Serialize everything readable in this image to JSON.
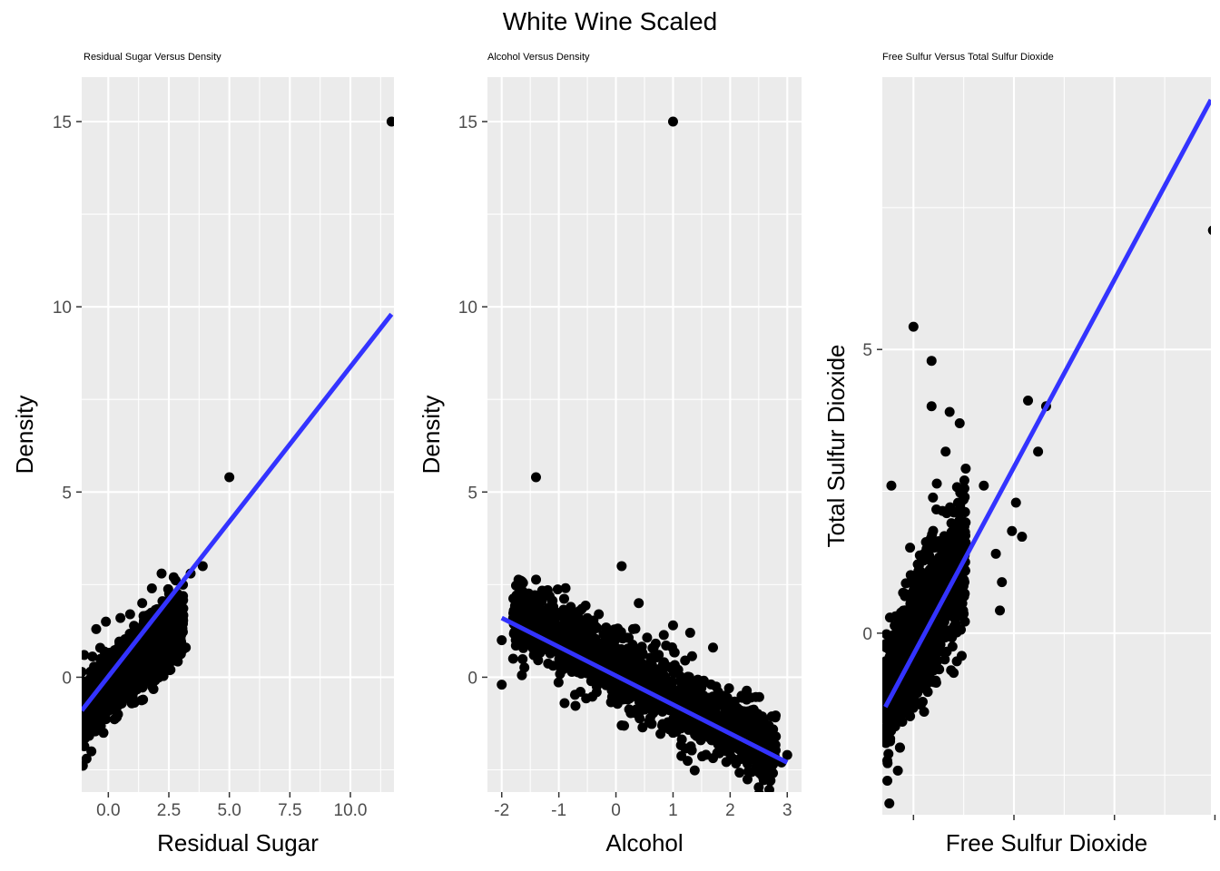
{
  "title": "White Wine Scaled",
  "chart_data": [
    {
      "type": "scatter",
      "title": "Residual Sugar Versus Density",
      "xlabel": "Residual Sugar",
      "ylabel": "Density",
      "xlim": [
        -1.1,
        11.8
      ],
      "ylim": [
        -3.1,
        16.2
      ],
      "x_ticks": [
        0.0,
        2.5,
        5.0,
        7.5,
        10.0
      ],
      "x_tick_labels": [
        "0.0",
        "2.5",
        "5.0",
        "7.5",
        "10.0"
      ],
      "y_ticks": [
        0,
        5,
        10,
        15
      ],
      "y_tick_labels": [
        "0",
        "5",
        "10",
        "15"
      ],
      "grid": true,
      "points": [
        [
          11.7,
          15.0
        ],
        [
          5.0,
          5.4
        ],
        [
          3.9,
          3.0
        ],
        [
          3.4,
          2.8
        ],
        [
          3.2,
          0.8
        ],
        [
          2.7,
          2.7
        ],
        [
          2.2,
          2.8
        ],
        [
          1.8,
          2.4
        ],
        [
          1.4,
          2.0
        ],
        [
          0.9,
          1.7
        ],
        [
          0.5,
          1.6
        ],
        [
          -0.1,
          1.5
        ],
        [
          -0.5,
          1.3
        ],
        [
          -1.0,
          0.6
        ],
        [
          -1.0,
          -0.6
        ],
        [
          -0.9,
          -2.2
        ],
        [
          -0.7,
          -2.0
        ],
        [
          -0.2,
          -1.5
        ],
        [
          0.4,
          -1.0
        ],
        [
          1.0,
          -0.5
        ],
        [
          1.5,
          0.0
        ],
        [
          2.0,
          0.5
        ],
        [
          2.5,
          1.0
        ],
        [
          3.0,
          2.0
        ],
        [
          2.9,
          0.9
        ],
        [
          -0.5,
          -0.3
        ],
        [
          0.0,
          0.4
        ],
        [
          0.6,
          0.9
        ],
        [
          1.2,
          1.3
        ],
        [
          1.7,
          1.7
        ]
      ],
      "cloud": {
        "x_range": [
          -1.1,
          3.1
        ],
        "y_center_intercept": -0.3,
        "y_center_slope": 0.62,
        "y_spread": 0.75
      },
      "fit_line": {
        "x": [
          -1.1,
          11.7
        ],
        "y": [
          -0.9,
          9.8
        ]
      }
    },
    {
      "type": "scatter",
      "title": "Alcohol Versus Density",
      "xlabel": "Alcohol",
      "ylabel": "Density",
      "xlim": [
        -2.25,
        3.25
      ],
      "ylim": [
        -3.1,
        16.2
      ],
      "x_ticks": [
        -2,
        -1,
        0,
        1,
        2,
        3
      ],
      "x_tick_labels": [
        "-2",
        "-1",
        "0",
        "1",
        "2",
        "3"
      ],
      "y_ticks": [
        0,
        5,
        10,
        15
      ],
      "y_tick_labels": [
        "0",
        "5",
        "10",
        "15"
      ],
      "grid": true,
      "points": [
        [
          1.0,
          15.0
        ],
        [
          -1.4,
          5.4
        ],
        [
          0.1,
          3.0
        ],
        [
          0.4,
          2.0
        ],
        [
          -2.0,
          1.0
        ],
        [
          -2.0,
          -0.2
        ],
        [
          -1.8,
          0.5
        ],
        [
          -1.7,
          1.4
        ],
        [
          -1.7,
          2.6
        ],
        [
          1.0,
          1.4
        ],
        [
          1.3,
          1.2
        ],
        [
          1.7,
          0.8
        ],
        [
          1.9,
          -0.5
        ],
        [
          2.2,
          -0.5
        ],
        [
          2.4,
          -1.3
        ],
        [
          2.5,
          -1.6
        ],
        [
          2.8,
          -1.6
        ],
        [
          2.9,
          -2.3
        ],
        [
          3.0,
          -2.1
        ],
        [
          2.6,
          -2.2
        ],
        [
          2.0,
          -1.8
        ],
        [
          1.0,
          -1.5
        ],
        [
          0.1,
          -1.3
        ],
        [
          -0.9,
          -0.7
        ],
        [
          -0.3,
          1.7
        ],
        [
          0.3,
          1.3
        ]
      ],
      "cloud": {
        "x_range": [
          -1.8,
          2.8
        ],
        "y_center_intercept": 0.3,
        "y_center_slope": -0.85,
        "y_spread": 0.9
      },
      "fit_line": {
        "x": [
          -2.0,
          3.0
        ],
        "y": [
          1.6,
          -2.3
        ]
      }
    },
    {
      "type": "scatter",
      "title": "Free Sulfur Versus Total Sulfur Dioxide",
      "xlabel": "Free Sulfur Dioxide",
      "ylabel": "Total Sulfur Dioxide",
      "xlim": [
        -1.55,
        14.8
      ],
      "ylim": [
        -3.2,
        9.8
      ],
      "x_ticks": [
        0,
        5,
        10,
        15
      ],
      "x_tick_labels": [
        "",
        "",
        "",
        ""
      ],
      "y_ticks": [
        0,
        5
      ],
      "y_tick_labels": [
        "0",
        "5"
      ],
      "grid": true,
      "points": [
        [
          14.9,
          7.1
        ],
        [
          0.0,
          5.4
        ],
        [
          0.9,
          4.8
        ],
        [
          0.9,
          4.0
        ],
        [
          1.8,
          3.9
        ],
        [
          2.3,
          3.7
        ],
        [
          5.7,
          4.1
        ],
        [
          6.6,
          4.0
        ],
        [
          6.2,
          3.2
        ],
        [
          1.6,
          3.2
        ],
        [
          2.6,
          2.9
        ],
        [
          3.5,
          2.6
        ],
        [
          5.1,
          2.3
        ],
        [
          4.9,
          1.8
        ],
        [
          5.4,
          1.7
        ],
        [
          4.1,
          1.4
        ],
        [
          4.4,
          0.9
        ],
        [
          4.3,
          0.4
        ],
        [
          2.4,
          -0.4
        ],
        [
          2.0,
          -0.7
        ],
        [
          -1.2,
          -3.0
        ],
        [
          -1.3,
          -2.6
        ],
        [
          -1.4,
          -1.5
        ],
        [
          -1.1,
          2.6
        ]
      ],
      "cloud": {
        "x_range": [
          -1.4,
          2.6
        ],
        "y_center_intercept": -0.2,
        "y_center_slope": 0.65,
        "y_spread": 1.0
      },
      "fit_line": {
        "x": [
          -1.4,
          14.8
        ],
        "y": [
          -1.3,
          9.4
        ]
      }
    }
  ]
}
